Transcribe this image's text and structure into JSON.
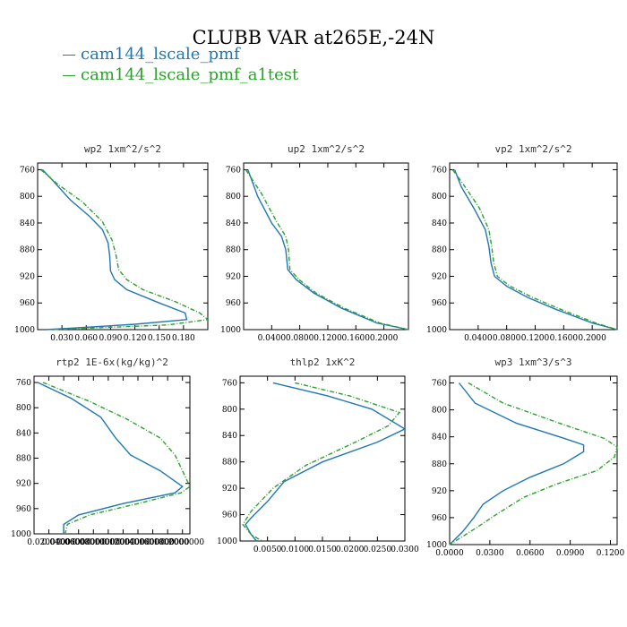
{
  "title": "CLUBB VAR at265E,-24N",
  "legend": [
    {
      "label": "cam144_lscale_pmf",
      "color": "#1f77b4",
      "dash": "solid"
    },
    {
      "label": "cam144_lscale_pmf_a1test",
      "color": "#2ca02c",
      "dash": "dashdot"
    }
  ],
  "chart_data": [
    {
      "type": "line",
      "title": "wp2  1xm^2/s^2",
      "ylim": [
        1000,
        750
      ],
      "yticks": [
        760,
        800,
        840,
        880,
        920,
        960,
        1000
      ],
      "xlim": [
        0.0,
        0.21
      ],
      "xticks": [
        0.03,
        0.06,
        0.09,
        0.12,
        0.15,
        0.18
      ],
      "xtick_labels": [
        "0.030",
        "0.060",
        "0.090",
        "0.120",
        "0.150",
        "0.180"
      ],
      "series": [
        {
          "values": [
            [
              0.006,
              760
            ],
            [
              0.02,
              778
            ],
            [
              0.04,
              805
            ],
            [
              0.064,
              830
            ],
            [
              0.08,
              850
            ],
            [
              0.087,
              870
            ],
            [
              0.089,
              890
            ],
            [
              0.09,
              912
            ],
            [
              0.095,
              925
            ],
            [
              0.11,
              940
            ],
            [
              0.15,
              960
            ],
            [
              0.182,
              975
            ],
            [
              0.184,
              985
            ],
            [
              0.12,
              992
            ],
            [
              0.04,
              998
            ],
            [
              0.01,
              1000
            ]
          ]
        },
        {
          "values": [
            [
              0.004,
              760
            ],
            [
              0.025,
              782
            ],
            [
              0.055,
              808
            ],
            [
              0.08,
              838
            ],
            [
              0.092,
              866
            ],
            [
              0.097,
              890
            ],
            [
              0.1,
              910
            ],
            [
              0.11,
              925
            ],
            [
              0.13,
              940
            ],
            [
              0.17,
              958
            ],
            [
              0.2,
              975
            ],
            [
              0.21,
              985
            ],
            [
              0.16,
              993
            ],
            [
              0.06,
              998
            ],
            [
              0.015,
              1000
            ]
          ]
        }
      ]
    },
    {
      "type": "line",
      "title": "up2  1xm^2/s^2",
      "ylim": [
        1000,
        750
      ],
      "yticks": [
        760,
        800,
        840,
        880,
        920,
        960,
        1000
      ],
      "xlim": [
        0.0,
        0.235
      ],
      "xticks": [
        0.04,
        0.08,
        0.12,
        0.16,
        0.2
      ],
      "xtick_labels": [
        "0.0400",
        "0.0800",
        "0.1200",
        "0.1600",
        "0.2000"
      ],
      "series": [
        {
          "values": [
            [
              0.006,
              760
            ],
            [
              0.02,
              800
            ],
            [
              0.04,
              840
            ],
            [
              0.054,
              860
            ],
            [
              0.06,
              880
            ],
            [
              0.063,
              910
            ],
            [
              0.075,
              925
            ],
            [
              0.1,
              945
            ],
            [
              0.14,
              968
            ],
            [
              0.19,
              990
            ],
            [
              0.235,
              1000
            ]
          ]
        },
        {
          "values": [
            [
              0.003,
              760
            ],
            [
              0.025,
              795
            ],
            [
              0.047,
              838
            ],
            [
              0.06,
              860
            ],
            [
              0.064,
              880
            ],
            [
              0.066,
              910
            ],
            [
              0.079,
              925
            ],
            [
              0.103,
              945
            ],
            [
              0.144,
              968
            ],
            [
              0.194,
              990
            ],
            [
              0.235,
              1000
            ]
          ]
        }
      ]
    },
    {
      "type": "line",
      "title": "vp2  1xm^2/s^2",
      "ylim": [
        1000,
        750
      ],
      "yticks": [
        760,
        800,
        840,
        880,
        920,
        960,
        1000
      ],
      "xlim": [
        0.0,
        0.235
      ],
      "xticks": [
        0.04,
        0.08,
        0.12,
        0.16,
        0.2
      ],
      "xtick_labels": [
        "0.0400",
        "0.0800",
        "0.1200",
        "0.1600",
        "0.2000"
      ],
      "series": [
        {
          "values": [
            [
              0.007,
              760
            ],
            [
              0.016,
              785
            ],
            [
              0.034,
              818
            ],
            [
              0.05,
              850
            ],
            [
              0.055,
              875
            ],
            [
              0.058,
              900
            ],
            [
              0.063,
              920
            ],
            [
              0.08,
              935
            ],
            [
              0.11,
              952
            ],
            [
              0.15,
              970
            ],
            [
              0.2,
              990
            ],
            [
              0.235,
              1000
            ]
          ]
        },
        {
          "values": [
            [
              0.004,
              760
            ],
            [
              0.018,
              780
            ],
            [
              0.042,
              818
            ],
            [
              0.055,
              850
            ],
            [
              0.059,
              875
            ],
            [
              0.062,
              900
            ],
            [
              0.067,
              920
            ],
            [
              0.085,
              935
            ],
            [
              0.117,
              952
            ],
            [
              0.157,
              970
            ],
            [
              0.205,
              990
            ],
            [
              0.235,
              1000
            ]
          ]
        }
      ]
    },
    {
      "type": "line",
      "title": "rtp2  1E-6x(kg/kg)^2",
      "ylim": [
        1000,
        750
      ],
      "yticks": [
        760,
        800,
        840,
        880,
        920,
        960,
        1000
      ],
      "xlim": [
        0.0,
        0.21
      ],
      "xticks": [
        0.02,
        0.04,
        0.06,
        0.08,
        0.1,
        0.12,
        0.14,
        0.16,
        0.18,
        0.2
      ],
      "xtick_labels": [
        "0.0200000",
        "0.0400000",
        "0.0600000",
        "0.0800000",
        "0.1000000",
        "0.1200000",
        "0.1400000",
        "0.1600000",
        "0.1800000",
        "0.2000000"
      ],
      "series": [
        {
          "values": [
            [
              0.005,
              760
            ],
            [
              0.05,
              785
            ],
            [
              0.09,
              815
            ],
            [
              0.11,
              848
            ],
            [
              0.13,
              875
            ],
            [
              0.17,
              900
            ],
            [
              0.2,
              925
            ],
            [
              0.19,
              935
            ],
            [
              0.12,
              952
            ],
            [
              0.06,
              970
            ],
            [
              0.04,
              985
            ],
            [
              0.04,
              1000
            ]
          ]
        },
        {
          "values": [
            [
              0.012,
              760
            ],
            [
              0.075,
              790
            ],
            [
              0.125,
              818
            ],
            [
              0.17,
              848
            ],
            [
              0.19,
              875
            ],
            [
              0.2,
              900
            ],
            [
              0.21,
              925
            ],
            [
              0.198,
              935
            ],
            [
              0.14,
              952
            ],
            [
              0.075,
              970
            ],
            [
              0.045,
              985
            ],
            [
              0.042,
              1000
            ]
          ]
        }
      ]
    },
    {
      "type": "line",
      "title": "thlp2  1xK^2",
      "ylim": [
        1000,
        750
      ],
      "yticks": [
        760,
        800,
        840,
        880,
        920,
        960,
        1000
      ],
      "xlim": [
        0.0,
        0.03
      ],
      "xticks": [
        0.005,
        0.01,
        0.015,
        0.02,
        0.025,
        0.03
      ],
      "xtick_labels": [
        "0.0050",
        "0.0100",
        "0.0150",
        "0.0200",
        "0.0250",
        "0.0300"
      ],
      "series": [
        {
          "values": [
            [
              0.006,
              760
            ],
            [
              0.016,
              780
            ],
            [
              0.024,
              800
            ],
            [
              0.03,
              830
            ],
            [
              0.025,
              850
            ],
            [
              0.015,
              880
            ],
            [
              0.008,
              910
            ],
            [
              0.005,
              940
            ],
            [
              0.002,
              965
            ],
            [
              0.001,
              975
            ],
            [
              0.002,
              990
            ],
            [
              0.003,
              1000
            ]
          ]
        },
        {
          "values": [
            [
              0.01,
              760
            ],
            [
              0.02,
              780
            ],
            [
              0.029,
              805
            ],
            [
              0.027,
              825
            ],
            [
              0.021,
              850
            ],
            [
              0.012,
              885
            ],
            [
              0.006,
              920
            ],
            [
              0.002,
              955
            ],
            [
              0.0005,
              975
            ],
            [
              0.002,
              990
            ],
            [
              0.004,
              1000
            ]
          ]
        }
      ]
    },
    {
      "type": "line",
      "title": "wp3  1xm^3/s^3",
      "ylim": [
        1000,
        750
      ],
      "yticks": [
        760,
        800,
        840,
        880,
        920,
        960,
        1000
      ],
      "xlim": [
        0.0,
        0.125
      ],
      "xticks": [
        0.0,
        0.03,
        0.06,
        0.09,
        0.12
      ],
      "xtick_labels": [
        "0.0000",
        "0.0300",
        "0.0600",
        "0.0900",
        "0.1200"
      ],
      "series": [
        {
          "values": [
            [
              0.007,
              760
            ],
            [
              0.019,
              790
            ],
            [
              0.05,
              820
            ],
            [
              0.085,
              842
            ],
            [
              0.1,
              852
            ],
            [
              0.1,
              862
            ],
            [
              0.085,
              880
            ],
            [
              0.06,
              900
            ],
            [
              0.04,
              920
            ],
            [
              0.025,
              940
            ],
            [
              0.018,
              960
            ],
            [
              0.01,
              980
            ],
            [
              0.0,
              1000
            ]
          ]
        },
        {
          "values": [
            [
              0.014,
              760
            ],
            [
              0.04,
              790
            ],
            [
              0.085,
              822
            ],
            [
              0.115,
              842
            ],
            [
              0.125,
              855
            ],
            [
              0.123,
              870
            ],
            [
              0.11,
              890
            ],
            [
              0.08,
              910
            ],
            [
              0.055,
              930
            ],
            [
              0.035,
              955
            ],
            [
              0.02,
              975
            ],
            [
              0.0,
              1000
            ]
          ]
        }
      ]
    }
  ]
}
